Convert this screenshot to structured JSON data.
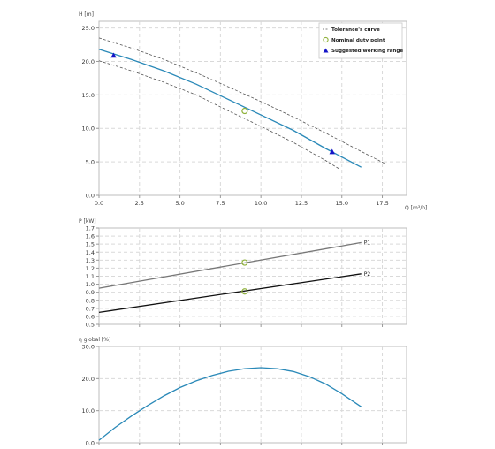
{
  "chart_data": [
    {
      "type": "line",
      "title": "",
      "ylabel": "H [m]",
      "xlabel": "Q [m³/h]",
      "xlim": [
        0,
        19
      ],
      "ylim": [
        0,
        26
      ],
      "xticks": [
        "0.0",
        "2.5",
        "5.0",
        "7.5",
        "10.0",
        "12.5",
        "15.0",
        "17.5"
      ],
      "yticks": [
        "0.0",
        "5.0",
        "10.0",
        "15.0",
        "20.0",
        "25.0"
      ],
      "grid": true,
      "legend_position": "top-right",
      "legend": {
        "tolerance": "Tolerance's curve",
        "duty": "Nominal duty point",
        "range": "Suggested working range"
      },
      "series": [
        {
          "name": "",
          "style": "solid",
          "color": "#2a89b8",
          "x": [
            0,
            2,
            4,
            6,
            8,
            10,
            12,
            14,
            16.2
          ],
          "y": [
            21.8,
            20.3,
            18.6,
            16.6,
            14.3,
            12.0,
            9.7,
            7.0,
            4.2
          ]
        },
        {
          "name": "Tolerance's curve",
          "style": "dashed",
          "color": "#555555",
          "x": [
            0,
            2,
            4,
            6,
            8,
            10,
            12,
            14,
            16,
            17.7
          ],
          "y": [
            23.5,
            22.0,
            20.3,
            18.3,
            16.2,
            14.0,
            11.7,
            9.3,
            6.8,
            4.7
          ]
        },
        {
          "name": "Tolerance's curve",
          "style": "dashed",
          "color": "#555555",
          "x": [
            0,
            2,
            4,
            6,
            8,
            10,
            12,
            14,
            14.8
          ],
          "y": [
            20.1,
            18.6,
            16.9,
            15.0,
            12.6,
            10.3,
            7.9,
            5.2,
            4.0
          ]
        }
      ],
      "duty_point": {
        "x": 9.0,
        "y": 12.6
      },
      "working_range_points": [
        {
          "x": 0.9,
          "y": 20.9
        },
        {
          "x": 14.4,
          "y": 6.5
        }
      ]
    },
    {
      "type": "line",
      "title": "",
      "ylabel": "P [kW]",
      "xlabel": "",
      "xlim": [
        0,
        19
      ],
      "ylim": [
        0.5,
        1.7
      ],
      "yticks": [
        "0.5",
        "0.6",
        "0.7",
        "0.8",
        "0.9",
        "1.0",
        "1.1",
        "1.2",
        "1.3",
        "1.4",
        "1.5",
        "1.6",
        "1.7"
      ],
      "grid": true,
      "series": [
        {
          "name": "P1",
          "color": "#777777",
          "x": [
            0,
            16.2
          ],
          "y": [
            0.95,
            1.52
          ]
        },
        {
          "name": "P2",
          "color": "#111111",
          "x": [
            0,
            16.2
          ],
          "y": [
            0.65,
            1.13
          ]
        }
      ],
      "duty_points": [
        {
          "x": 9.0,
          "y": 1.27
        },
        {
          "x": 9.0,
          "y": 0.91
        }
      ]
    },
    {
      "type": "line",
      "title": "",
      "ylabel": "η global [%]",
      "xlabel": "",
      "xlim": [
        0,
        19
      ],
      "ylim": [
        0,
        30
      ],
      "yticks": [
        "0.0",
        "10.0",
        "20.0",
        "30.0"
      ],
      "grid": true,
      "series": [
        {
          "name": "",
          "color": "#2a89b8",
          "x": [
            0,
            1,
            2,
            3,
            4,
            5,
            6,
            7,
            8,
            9,
            10,
            11,
            12,
            13,
            14,
            15,
            16.2
          ],
          "y": [
            0.8,
            4.8,
            8.3,
            11.6,
            14.6,
            17.2,
            19.3,
            21.0,
            22.3,
            23.1,
            23.4,
            23.1,
            22.2,
            20.6,
            18.3,
            15.3,
            11.2
          ]
        }
      ]
    }
  ]
}
